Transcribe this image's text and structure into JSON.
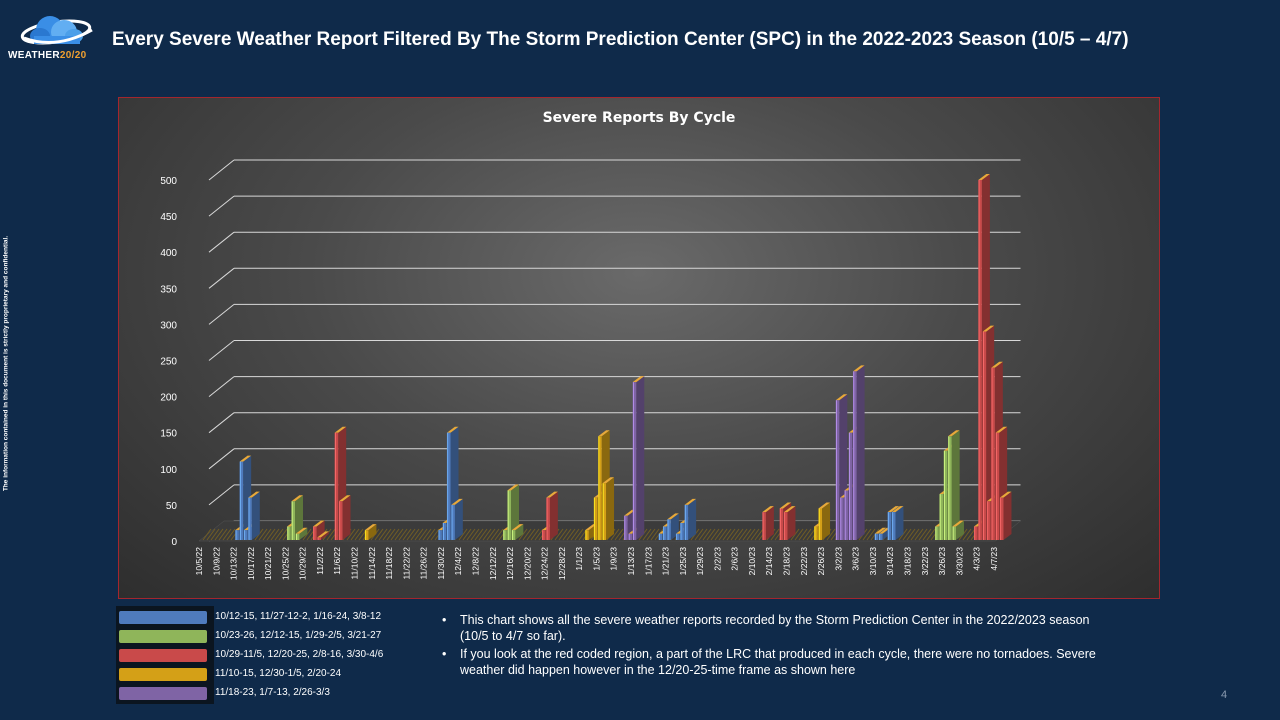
{
  "header": {
    "title": "Every Severe Weather Report Filtered By The Storm Prediction Center (SPC) in the 2022-2023 Season (10/5 – 4/7)",
    "logo_text_main": "WEATHER",
    "logo_text_accent": "20/20"
  },
  "side_note": "The information contained in this document is strictly proprietary and confidential.",
  "legend": [
    {
      "label": "10/12-15, 11/27-12-2, 1/16-24, 3/8-12",
      "color": "#4f7bbd"
    },
    {
      "label": "10/23-26, 12/12-15, 1/29-2/5, 3/21-27",
      "color": "#8fb55a"
    },
    {
      "label": "10/29-11/5, 12/20-25, 2/8-16, 3/30-4/6",
      "color": "#c94a4a"
    },
    {
      "label": "11/10-15, 12/30-1/5, 2/20-24",
      "color": "#d4a017"
    },
    {
      "label": "11/18-23, 1/7-13, 2/26-3/3",
      "color": "#7f64a5"
    }
  ],
  "bullets": [
    "This chart shows all the severe weather reports recorded by the Storm Prediction Center in the 2022/2023 season (10/5 to 4/7 so far).",
    "If you look at the red coded region, a part of the LRC that produced in each cycle, there were no tornadoes.  Severe weather did happen however in the 12/20-25-time frame as shown here"
  ],
  "page_number": "4",
  "chart_data": {
    "type": "bar",
    "title": "Severe Reports By Cycle",
    "ylim": [
      0,
      500
    ],
    "yticks": [
      0,
      50,
      100,
      150,
      200,
      250,
      300,
      350,
      400,
      450,
      500
    ],
    "xtick_labels": [
      "10/5/22",
      "10/9/22",
      "10/13/22",
      "10/17/22",
      "10/21/22",
      "10/25/22",
      "10/29/22",
      "11/2/22",
      "11/6/22",
      "11/10/22",
      "11/14/22",
      "11/18/22",
      "11/22/22",
      "11/26/22",
      "11/30/22",
      "12/4/22",
      "12/8/22",
      "12/12/22",
      "12/16/22",
      "12/20/22",
      "12/24/22",
      "12/28/22",
      "1/1/23",
      "1/5/23",
      "1/9/23",
      "1/13/23",
      "1/17/23",
      "1/21/23",
      "1/25/23",
      "1/29/23",
      "2/2/23",
      "2/6/23",
      "2/10/23",
      "2/14/23",
      "2/18/23",
      "2/22/23",
      "2/26/23",
      "3/2/23",
      "3/6/23",
      "3/10/23",
      "3/14/23",
      "3/18/23",
      "3/22/23",
      "3/26/23",
      "3/30/23",
      "4/3/23",
      "4/7/23"
    ],
    "start_date": "10/5/22",
    "grid": true,
    "series": [
      {
        "name": "10/12-15, 11/27-12-2, 1/16-24, 3/8-12",
        "points": [
          [
            "10/12/22",
            15
          ],
          [
            "10/13/22",
            110
          ],
          [
            "10/14/22",
            15
          ],
          [
            "10/15/22",
            60
          ],
          [
            "11/28/22",
            15
          ],
          [
            "11/29/22",
            25
          ],
          [
            "11/30/22",
            150
          ],
          [
            "12/1/22",
            50
          ],
          [
            "1/18/23",
            10
          ],
          [
            "1/19/23",
            20
          ],
          [
            "1/20/23",
            30
          ],
          [
            "1/22/23",
            10
          ],
          [
            "1/23/23",
            25
          ],
          [
            "1/24/23",
            50
          ],
          [
            "3/9/23",
            10
          ],
          [
            "3/10/23",
            10
          ],
          [
            "3/12/23",
            40
          ],
          [
            "3/13/23",
            40
          ]
        ]
      },
      {
        "name": "10/23-26, 12/12-15, 1/29-2/5, 3/21-27",
        "points": [
          [
            "10/24/22",
            20
          ],
          [
            "10/25/22",
            55
          ],
          [
            "10/26/22",
            10
          ],
          [
            "12/13/22",
            15
          ],
          [
            "12/14/22",
            70
          ],
          [
            "12/15/22",
            15
          ],
          [
            "3/23/23",
            20
          ],
          [
            "3/24/23",
            65
          ],
          [
            "3/25/23",
            125
          ],
          [
            "3/26/23",
            145
          ],
          [
            "3/27/23",
            20
          ]
        ]
      },
      {
        "name": "10/29-11/5, 12/20-25, 2/8-16, 3/30-4/6",
        "points": [
          [
            "10/30/22",
            20
          ],
          [
            "10/31/22",
            5
          ],
          [
            "11/4/22",
            150
          ],
          [
            "11/5/22",
            55
          ],
          [
            "12/22/22",
            15
          ],
          [
            "12/23/22",
            60
          ],
          [
            "2/11/23",
            40
          ],
          [
            "2/15/23",
            45
          ],
          [
            "2/16/23",
            40
          ],
          [
            "4/1/23",
            20
          ],
          [
            "4/2/23",
            500
          ],
          [
            "4/3/23",
            290
          ],
          [
            "4/4/23",
            55
          ],
          [
            "4/5/23",
            240
          ],
          [
            "4/6/23",
            150
          ],
          [
            "4/7/23",
            60
          ]
        ]
      },
      {
        "name": "11/10-15, 12/30-1/5, 2/20-24",
        "points": [
          [
            "11/11/22",
            15
          ],
          [
            "1/1/23",
            15
          ],
          [
            "1/3/23",
            60
          ],
          [
            "1/4/23",
            145
          ],
          [
            "1/5/23",
            80
          ],
          [
            "2/23/23",
            20
          ],
          [
            "2/24/23",
            45
          ]
        ]
      },
      {
        "name": "11/18-23, 1/7-13, 2/26-3/3",
        "points": [
          [
            "1/10/23",
            35
          ],
          [
            "1/11/23",
            10
          ],
          [
            "1/12/23",
            220
          ],
          [
            "2/28/23",
            195
          ],
          [
            "3/1/23",
            60
          ],
          [
            "3/2/23",
            70
          ],
          [
            "3/3/23",
            150
          ],
          [
            "3/4/23",
            235
          ]
        ]
      }
    ]
  }
}
